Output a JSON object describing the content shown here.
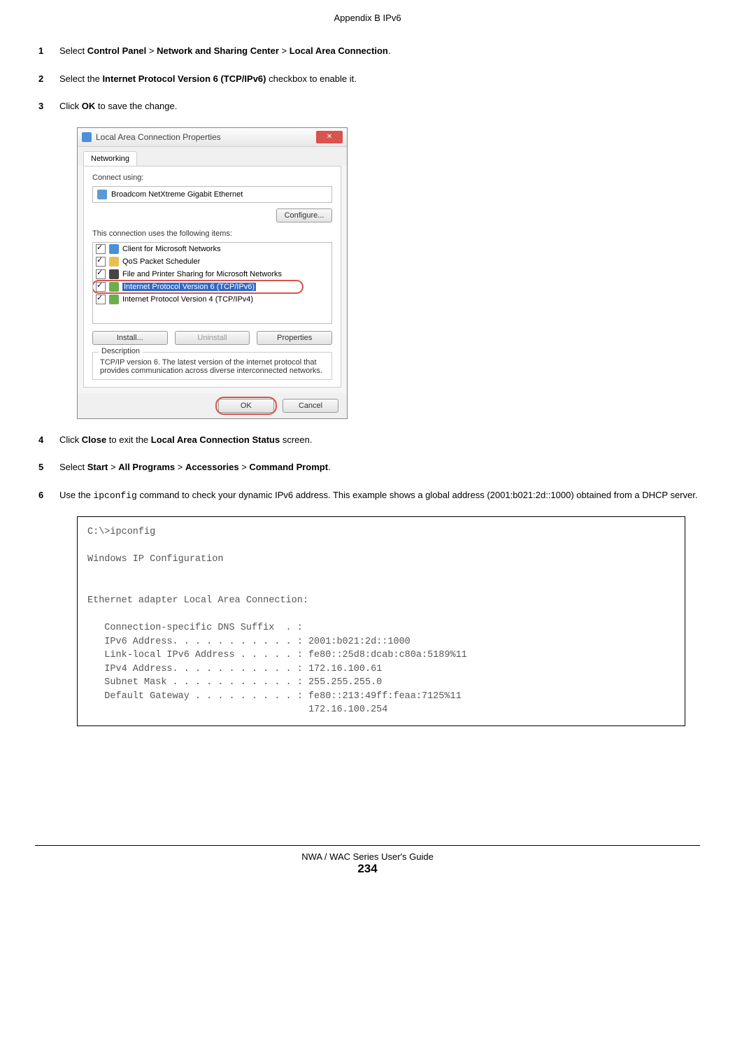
{
  "header": "Appendix B IPv6",
  "steps": {
    "s1": {
      "num": "1",
      "pre": "Select ",
      "b1": "Control Panel",
      "sep1": " > ",
      "b2": "Network and Sharing Center",
      "sep2": " > ",
      "b3": "Local Area Connection",
      "post": "."
    },
    "s2": {
      "num": "2",
      "pre": "Select the ",
      "b1": "Internet Protocol Version 6 (TCP/IPv6)",
      "post": " checkbox to enable it."
    },
    "s3": {
      "num": "3",
      "pre": "Click ",
      "b1": "OK",
      "post": " to save the change."
    },
    "s4": {
      "num": "4",
      "pre": "Click ",
      "b1": "Close",
      "mid": " to exit the ",
      "b2": "Local Area Connection Status",
      "post": " screen."
    },
    "s5": {
      "num": "5",
      "pre": "Select ",
      "b1": "Start",
      "sep1": " > ",
      "b2": "All Programs",
      "sep2": " > ",
      "b3": "Accessories",
      "sep3": " > ",
      "b4": "Command Prompt",
      "post": "."
    },
    "s6": {
      "num": "6",
      "pre": "Use the ",
      "cmd": "ipconfig",
      "post": " command to check your dynamic IPv6 address. This example shows a global address (2001:b021:2d::1000) obtained from a DHCP server."
    }
  },
  "dialog": {
    "title": "Local Area Connection Properties",
    "tab": "Networking",
    "connect_using_label": "Connect using:",
    "adapter_name": "Broadcom NetXtreme Gigabit Ethernet",
    "configure_btn": "Configure...",
    "items_label": "This connection uses the following items:",
    "items": [
      {
        "label": "Client for Microsoft Networks",
        "icon": "ic-blue"
      },
      {
        "label": "QoS Packet Scheduler",
        "icon": "ic-yellow"
      },
      {
        "label": "File and Printer Sharing for Microsoft Networks",
        "icon": "ic-dark"
      },
      {
        "label": "Internet Protocol Version 6 (TCP/IPv6)",
        "icon": "ic-green",
        "highlight": true
      },
      {
        "label": "Internet Protocol Version 4 (TCP/IPv4)",
        "icon": "ic-green"
      }
    ],
    "install_btn": "Install...",
    "uninstall_btn": "Uninstall",
    "properties_btn": "Properties",
    "desc_legend": "Description",
    "desc_text": "TCP/IP version 6. The latest version of the internet protocol that provides communication across diverse interconnected networks.",
    "ok_btn": "OK",
    "cancel_btn": "Cancel"
  },
  "code": "C:\\>ipconfig\n\nWindows IP Configuration\n\n\nEthernet adapter Local Area Connection:\n\n   Connection-specific DNS Suffix  . : \n   IPv6 Address. . . . . . . . . . . : 2001:b021:2d::1000\n   Link-local IPv6 Address . . . . . : fe80::25d8:dcab:c80a:5189%11\n   IPv4 Address. . . . . . . . . . . : 172.16.100.61\n   Subnet Mask . . . . . . . . . . . : 255.255.255.0\n   Default Gateway . . . . . . . . . : fe80::213:49ff:feaa:7125%11\n                                       172.16.100.254",
  "footer": {
    "guide": "NWA / WAC Series User's Guide",
    "page": "234"
  }
}
